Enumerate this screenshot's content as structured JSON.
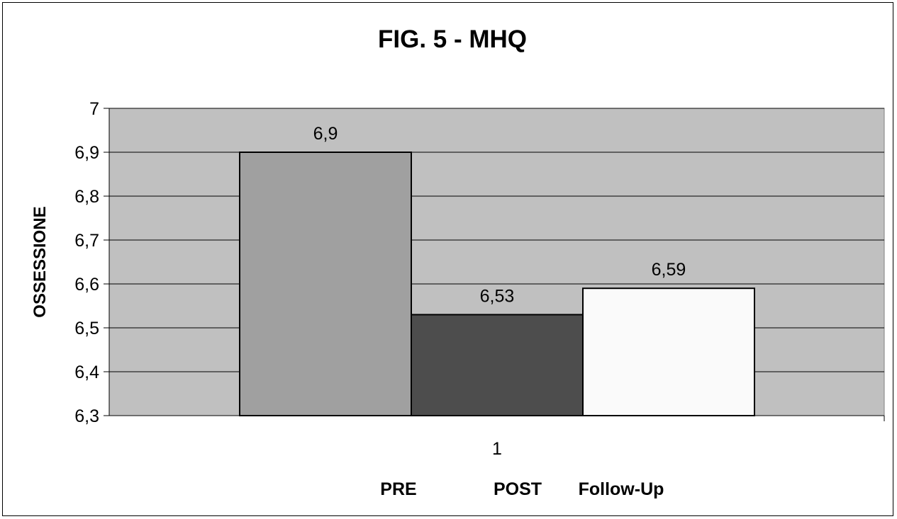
{
  "chart_data": {
    "type": "bar",
    "title": "FIG. 5 - MHQ",
    "ylabel": "OSSESSIONE",
    "xlabel": "",
    "categories": [
      "1"
    ],
    "series": [
      {
        "name": "PRE",
        "values": [
          6.9
        ],
        "color": "#a0a0a0",
        "label": "6,9"
      },
      {
        "name": "POST",
        "values": [
          6.53
        ],
        "color": "#4d4d4d",
        "label": "6,53"
      },
      {
        "name": "Follow-Up",
        "values": [
          6.59
        ],
        "color": "#fafafa",
        "label": "6,59"
      }
    ],
    "ylim": [
      6.3,
      7
    ],
    "yticks": [
      {
        "value": 6.3,
        "label": "6,3"
      },
      {
        "value": 6.4,
        "label": "6,4"
      },
      {
        "value": 6.5,
        "label": "6,5"
      },
      {
        "value": 6.6,
        "label": "6,6"
      },
      {
        "value": 6.7,
        "label": "6,7"
      },
      {
        "value": 6.8,
        "label": "6,8"
      },
      {
        "value": 6.9,
        "label": "6,9"
      },
      {
        "value": 7,
        "label": "7"
      }
    ],
    "grid": true,
    "plot_background": "#c0c0c0",
    "legend_position": "bottom"
  }
}
